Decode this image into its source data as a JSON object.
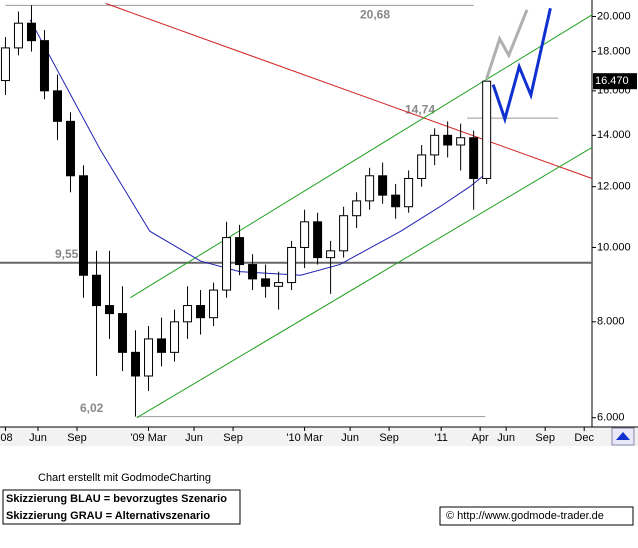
{
  "chart_data": {
    "type": "candlestick",
    "log_scale": true,
    "xlim": [
      2.08,
      47.6
    ],
    "ylim": [
      5.87,
      20.7
    ],
    "xticks": [
      {
        "value": 2.5,
        "label": "'08"
      },
      {
        "value": 5,
        "label": "Jun"
      },
      {
        "value": 8,
        "label": "Sep"
      },
      {
        "value": 13.5,
        "label": "'09 Mar"
      },
      {
        "value": 17,
        "label": "Jun"
      },
      {
        "value": 20,
        "label": "Sep"
      },
      {
        "value": 25.5,
        "label": "'10 Mar"
      },
      {
        "value": 29,
        "label": "Jun"
      },
      {
        "value": 32,
        "label": "Sep"
      },
      {
        "value": 36,
        "label": "'11"
      },
      {
        "value": 39,
        "label": "Apr"
      },
      {
        "value": 41,
        "label": "Jun"
      },
      {
        "value": 44,
        "label": "Sep"
      },
      {
        "value": 47,
        "label": "Dec"
      }
    ],
    "yticks": [
      {
        "value": 6,
        "label": "6.000"
      },
      {
        "value": 8,
        "label": "8.000"
      },
      {
        "value": 10,
        "label": "10.000"
      },
      {
        "value": 12,
        "label": "12.000"
      },
      {
        "value": 14,
        "label": "14.000"
      },
      {
        "value": 16,
        "label": "16.000"
      },
      {
        "value": 18,
        "label": "18.000"
      },
      {
        "value": 20,
        "label": "20.000"
      }
    ],
    "up_color": "#ffffff",
    "down_color": "#000000",
    "x": [
      2.5,
      3.5,
      4.5,
      5.5,
      6.5,
      7.5,
      8.5,
      9.5,
      10.5,
      11.5,
      12.5,
      13.5,
      14.5,
      15.5,
      16.5,
      17.5,
      18.5,
      19.5,
      20.5,
      21.5,
      22.5,
      23.5,
      24.5,
      25.5,
      26.5,
      27.5,
      28.5,
      29.5,
      30.5,
      31.5,
      32.5,
      33.5,
      34.5,
      35.5,
      36.5,
      37.5,
      38.5,
      39.5
    ],
    "open": [
      16.5,
      18.2,
      19.6,
      18.6,
      16.0,
      14.6,
      12.4,
      9.2,
      8.4,
      8.2,
      7.3,
      6.8,
      7.6,
      7.3,
      8.0,
      8.4,
      8.1,
      8.8,
      10.3,
      9.5,
      9.1,
      8.9,
      9.0,
      10.0,
      10.8,
      9.7,
      9.9,
      11.0,
      11.5,
      12.4,
      11.7,
      11.3,
      12.3,
      13.2,
      14.0,
      13.6,
      13.9,
      12.3
    ],
    "high": [
      18.8,
      20.3,
      20.68,
      19.2,
      16.8,
      15.0,
      12.8,
      9.9,
      9.9,
      8.9,
      7.8,
      7.9,
      8.1,
      8.3,
      8.9,
      8.8,
      9.0,
      10.8,
      10.7,
      9.8,
      9.5,
      9.3,
      10.2,
      11.2,
      11.1,
      10.2,
      11.3,
      11.8,
      12.7,
      12.9,
      12.1,
      12.6,
      13.6,
      14.3,
      14.6,
      14.5,
      14.2,
      16.47
    ],
    "low": [
      15.8,
      17.8,
      18.0,
      15.6,
      13.8,
      11.8,
      8.6,
      6.8,
      7.6,
      6.9,
      6.02,
      6.5,
      7.0,
      7.1,
      7.6,
      7.7,
      7.9,
      8.6,
      9.2,
      8.8,
      8.6,
      8.3,
      8.8,
      9.4,
      9.5,
      8.7,
      9.7,
      10.6,
      11.2,
      11.4,
      10.9,
      11.1,
      12.0,
      12.8,
      13.1,
      12.6,
      11.2,
      12.1
    ],
    "close": [
      18.2,
      19.6,
      18.6,
      16.0,
      14.6,
      12.4,
      9.2,
      8.4,
      8.2,
      7.3,
      6.8,
      7.6,
      7.3,
      8.0,
      8.4,
      8.1,
      8.8,
      10.3,
      9.5,
      9.1,
      8.9,
      9.0,
      10.0,
      10.8,
      9.7,
      9.9,
      11.0,
      11.5,
      12.4,
      11.7,
      11.3,
      12.3,
      13.2,
      14.0,
      13.6,
      13.9,
      12.3,
      16.47
    ],
    "moving_average": {
      "color": "#1f1fb4",
      "x": [
        4.4,
        9.8,
        13.6,
        17.5,
        20.5,
        25.2,
        28.2,
        32.9,
        35.9,
        38.2,
        39.5
      ],
      "values": [
        19.8,
        13.4,
        10.5,
        9.6,
        9.3,
        9.2,
        9.5,
        10.5,
        11.3,
        12.0,
        12.5
      ]
    },
    "trend_lines": [
      {
        "color": "#d02020",
        "x": [
          10.2,
          47.6
        ],
        "values": [
          20.8,
          12.3
        ]
      },
      {
        "color": "#20a020",
        "x": [
          12.1,
          47.6
        ],
        "values": [
          8.6,
          20.1
        ]
      },
      {
        "color": "#20a020",
        "x": [
          12.6,
          47.6
        ],
        "values": [
          6.0,
          13.5
        ]
      }
    ],
    "levels": [
      {
        "value": 20.68,
        "label": "20,68",
        "x": [
          2.5,
          38.5
        ],
        "color": "#999999"
      },
      {
        "value": 9.55,
        "label": "9,55",
        "x": [
          2.08,
          47.6
        ],
        "color": "#666666"
      },
      {
        "value": 6.02,
        "label": "6,02",
        "x": [
          12.6,
          39.4
        ],
        "color": "#999999"
      },
      {
        "value": 14.74,
        "label": "14,74",
        "x": [
          38.0,
          45.0
        ],
        "color": "#999999"
      }
    ],
    "projections": [
      {
        "color": "#b0b0b0",
        "x": [
          39.5,
          40.5,
          41.2,
          42.6
        ],
        "values": [
          16.6,
          18.7,
          17.8,
          20.4
        ]
      },
      {
        "color": "#1030d0",
        "x": [
          40.0,
          40.9,
          42.0,
          42.9,
          44.4
        ],
        "values": [
          16.3,
          14.7,
          17.2,
          15.8,
          20.5
        ]
      }
    ],
    "last_price": {
      "value": 16.47,
      "label": "16.470"
    }
  },
  "footer": {
    "credit": "Chart erstellt mit GodmodeCharting",
    "note_blue": "Skizzierung BLAU = bevorzugtes Szenario",
    "note_grey": "Skizzierung GRAU = Alternativszenario",
    "url": "© http://www.godmode-trader.de"
  }
}
